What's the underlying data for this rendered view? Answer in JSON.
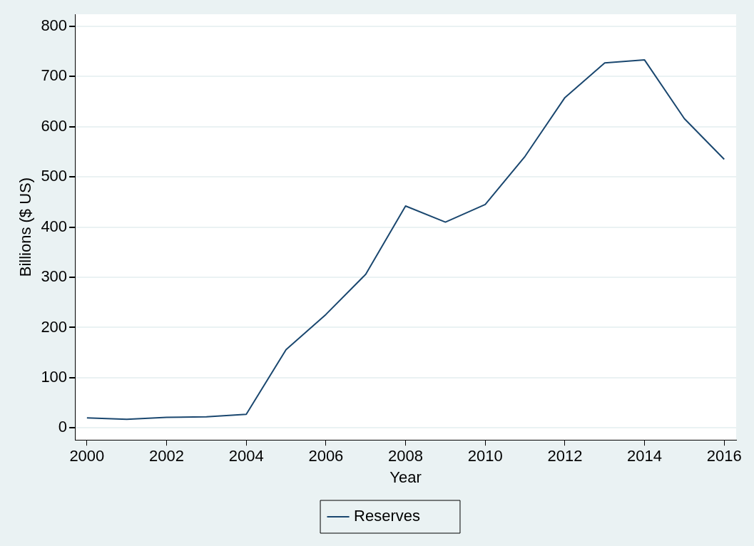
{
  "chart_data": {
    "type": "line",
    "xlabel": "Year",
    "ylabel": "Billions ($ US)",
    "x": [
      2000,
      2001,
      2002,
      2003,
      2004,
      2005,
      2006,
      2007,
      2008,
      2009,
      2010,
      2011,
      2012,
      2013,
      2014,
      2015,
      2016
    ],
    "series": [
      {
        "name": "Reserves",
        "color": "#1a476f",
        "values": [
          20,
          17,
          21,
          22,
          27,
          156,
          226,
          306,
          442,
          410,
          445,
          541,
          658,
          727,
          733,
          616,
          535
        ]
      }
    ],
    "xlim": [
      1999.7,
      2016.3
    ],
    "xticks": [
      2000,
      2002,
      2004,
      2006,
      2008,
      2010,
      2012,
      2014,
      2016
    ],
    "ylim": [
      -24,
      824
    ],
    "yticks": [
      0,
      100,
      200,
      300,
      400,
      500,
      600,
      700,
      800
    ],
    "grid": "y",
    "legend": "bottom",
    "marker": "none",
    "line_style": "solid"
  }
}
